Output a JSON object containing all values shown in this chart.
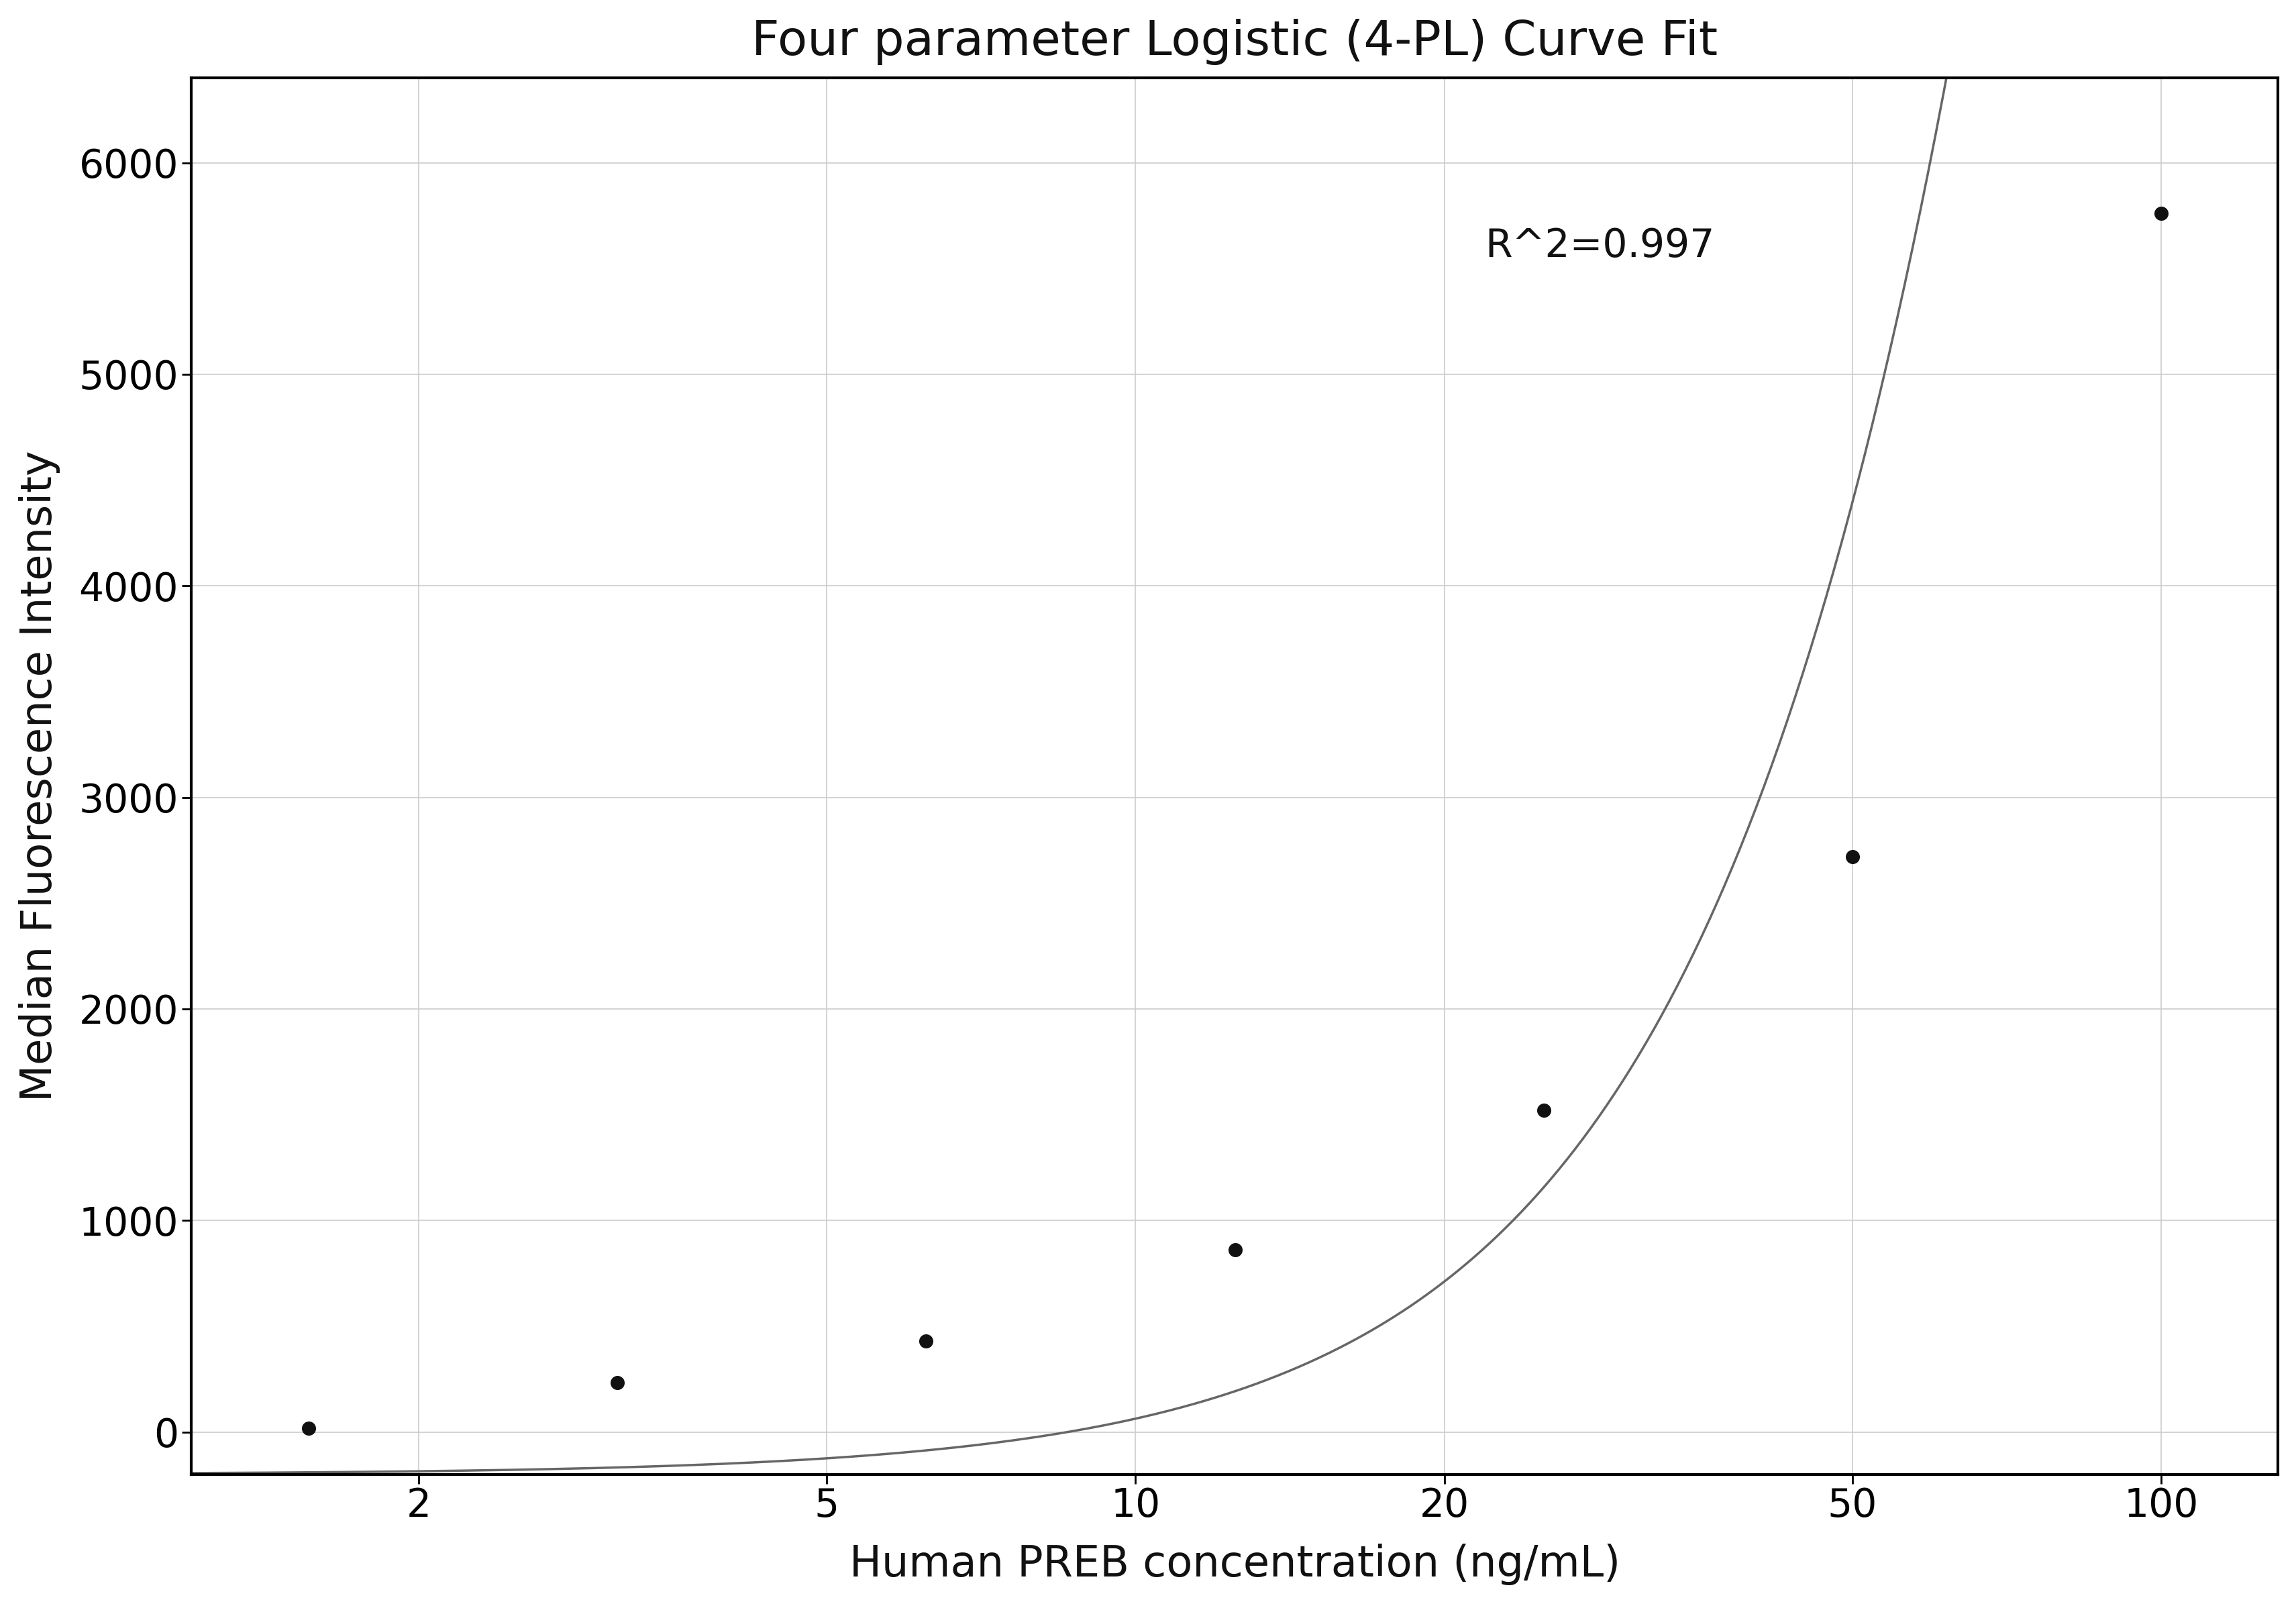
{
  "title": "Four parameter Logistic (4-PL) Curve Fit",
  "xlabel": "Human PREB concentration (ng/mL)",
  "ylabel": "Median Fluorescence Intensity",
  "r_squared_text": "R^2=0.997",
  "data_x": [
    1.5625,
    3.125,
    6.25,
    12.5,
    25,
    50,
    100
  ],
  "data_y": [
    18,
    235,
    430,
    860,
    1520,
    2720,
    5760
  ],
  "xscale": "log",
  "xlim": [
    1.2,
    130
  ],
  "ylim": [
    -200,
    6400
  ],
  "yticks": [
    0,
    1000,
    2000,
    3000,
    4000,
    5000,
    6000
  ],
  "xticks": [
    2,
    5,
    10,
    20,
    50,
    100
  ],
  "grid_color": "#cccccc",
  "line_color": "#666666",
  "dot_color": "#111111",
  "dot_size": 200,
  "background_color": "#ffffff",
  "title_fontsize": 52,
  "label_fontsize": 46,
  "tick_fontsize": 42,
  "annotation_fontsize": 42
}
